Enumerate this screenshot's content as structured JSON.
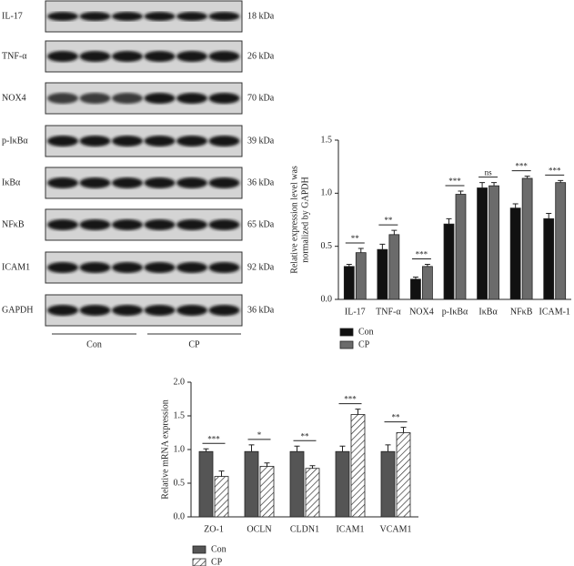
{
  "blot": {
    "rows": [
      {
        "label": "IL-17",
        "kda": "18 kDa"
      },
      {
        "label": "TNF-α",
        "kda": "26 kDa"
      },
      {
        "label": "NOX4",
        "kda": "70 kDa"
      },
      {
        "label": "p-IκBα",
        "kda": "39 kDa"
      },
      {
        "label": "IκBα",
        "kda": "36 kDa"
      },
      {
        "label": "NFκB",
        "kda": "65 kDa"
      },
      {
        "label": "ICAM1",
        "kda": "92 kDa"
      },
      {
        "label": "GAPDH",
        "kda": "36 kDa"
      }
    ],
    "groups": [
      "Con",
      "CP"
    ]
  },
  "chart_data": [
    {
      "type": "bar",
      "ylabel": [
        "Relative expression level was",
        "normalized by GAPDH"
      ],
      "categories": [
        "IL-17",
        "TNF-α",
        "NOX4",
        "p-IκBα",
        "IκBα",
        "NFκB",
        "ICAM-1"
      ],
      "series": [
        {
          "name": "Con",
          "color": "#111111",
          "values": [
            0.31,
            0.47,
            0.19,
            0.71,
            1.05,
            0.86,
            0.76
          ],
          "errors": [
            0.02,
            0.05,
            0.02,
            0.05,
            0.05,
            0.04,
            0.05
          ]
        },
        {
          "name": "CP",
          "color": "#6b6b6b",
          "values": [
            0.44,
            0.61,
            0.31,
            0.99,
            1.07,
            1.14,
            1.1
          ],
          "errors": [
            0.04,
            0.04,
            0.02,
            0.03,
            0.03,
            0.02,
            0.02
          ]
        }
      ],
      "significance": [
        "**",
        "**",
        "***",
        "***",
        "ns",
        "***",
        "***"
      ],
      "ylim": [
        0,
        1.5
      ],
      "yticks": [
        {
          "value": 0,
          "label": "0.0"
        },
        {
          "value": 0.5,
          "label": "0.5"
        },
        {
          "value": 1,
          "label": "1.0"
        },
        {
          "value": 1.5,
          "label": "1.5"
        }
      ]
    },
    {
      "type": "bar",
      "ylabel": [
        "Relative mRNA expression"
      ],
      "categories": [
        "ZO-1",
        "OCLN",
        "CLDN1",
        "ICAM1",
        "VCAM1"
      ],
      "series": [
        {
          "name": "Con",
          "color": "#555555",
          "values": [
            0.97,
            0.97,
            0.97,
            0.97,
            0.97
          ],
          "errors": [
            0.04,
            0.1,
            0.08,
            0.08,
            0.1
          ]
        },
        {
          "name": "CP",
          "color": "#ffffff",
          "hatch": true,
          "values": [
            0.6,
            0.75,
            0.72,
            1.52,
            1.25
          ],
          "errors": [
            0.08,
            0.05,
            0.04,
            0.08,
            0.08
          ]
        }
      ],
      "significance": [
        "***",
        "*",
        "**",
        "***",
        "**"
      ],
      "ylim": [
        0,
        2
      ],
      "yticks": [
        {
          "value": 0,
          "label": "0.0"
        },
        {
          "value": 0.5,
          "label": "0.5"
        },
        {
          "value": 1,
          "label": "1.0"
        },
        {
          "value": 1.5,
          "label": "1.5"
        },
        {
          "value": 2,
          "label": "2.0"
        }
      ]
    }
  ]
}
